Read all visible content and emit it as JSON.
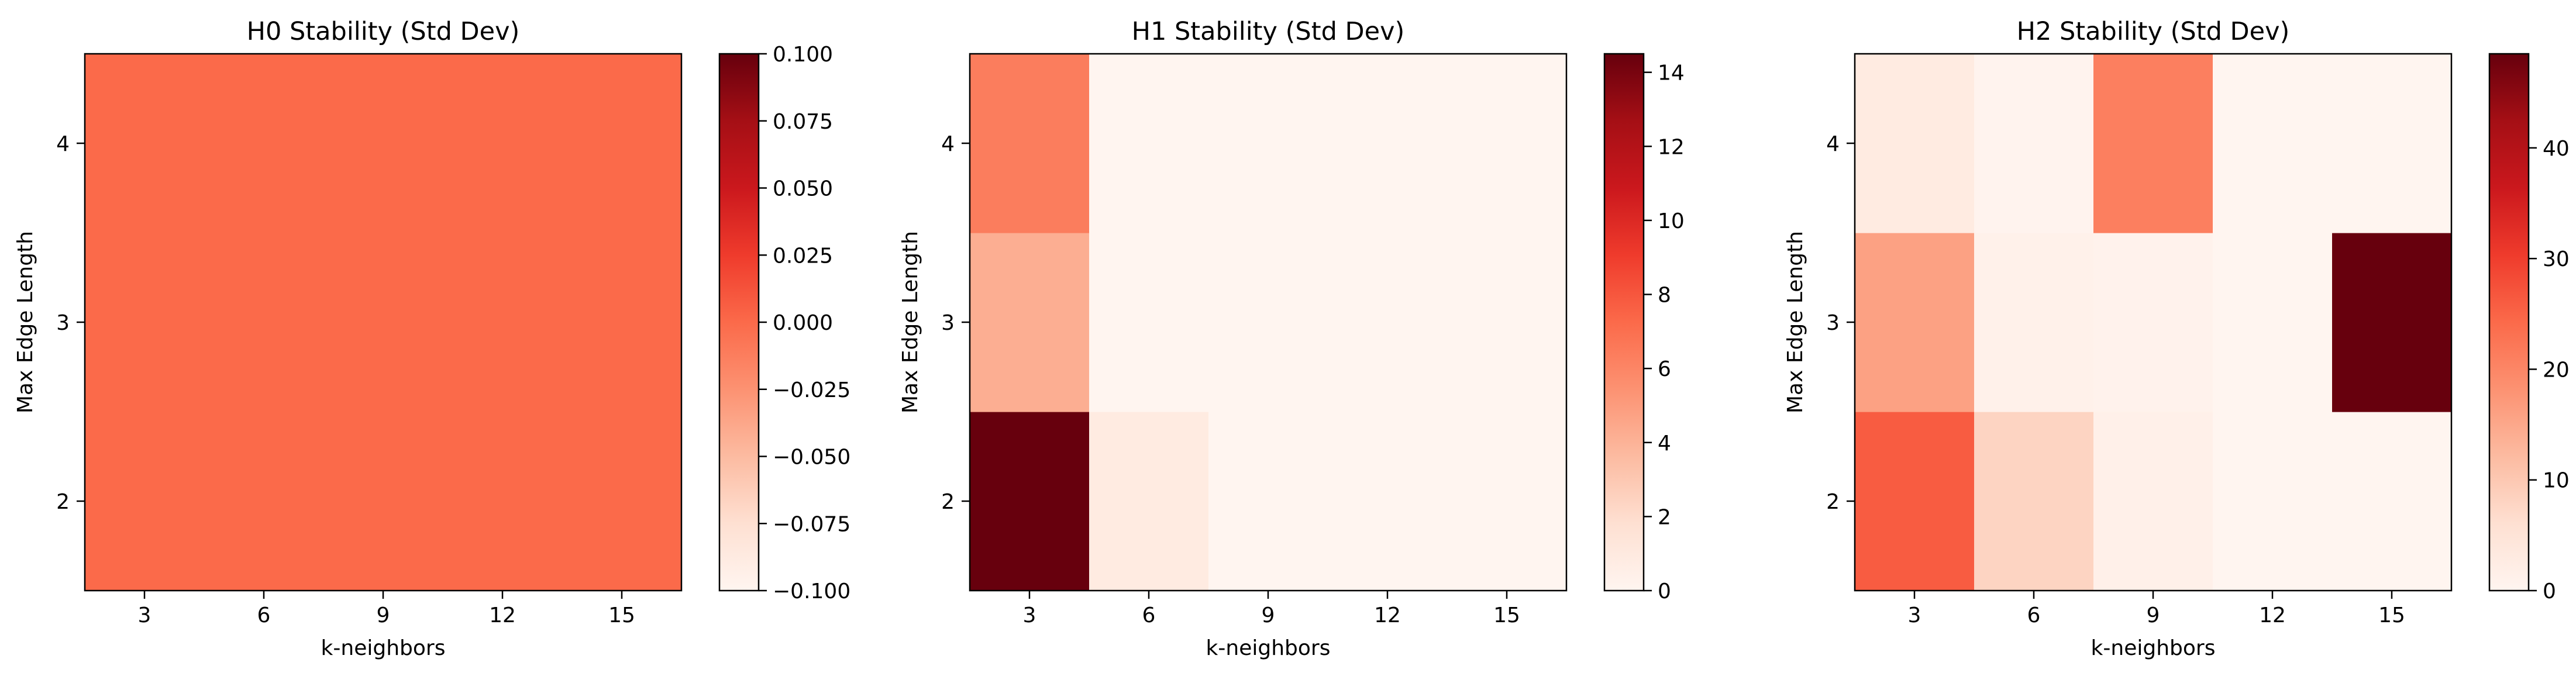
{
  "chart_data": [
    {
      "type": "heatmap",
      "title": "H0 Stability (Std Dev)",
      "xlabel": "k-neighbors",
      "ylabel": "Max Edge Length",
      "x": [
        3,
        6,
        9,
        12,
        15
      ],
      "y": [
        2,
        3,
        4
      ],
      "values": [
        [
          0,
          0,
          0,
          0,
          0
        ],
        [
          0,
          0,
          0,
          0,
          0
        ],
        [
          0,
          0,
          0,
          0,
          0
        ]
      ],
      "colorbar": {
        "min": -0.1,
        "max": 0.1,
        "ticks": [
          -0.1,
          -0.075,
          -0.05,
          -0.025,
          0,
          0.025,
          0.05,
          0.075,
          0.1
        ],
        "tick_labels": [
          "−0.100",
          "−0.075",
          "−0.050",
          "−0.025",
          "0.000",
          "0.025",
          "0.050",
          "0.075",
          "0.100"
        ]
      },
      "colormap": "Reds"
    },
    {
      "type": "heatmap",
      "title": "H1 Stability (Std Dev)",
      "xlabel": "k-neighbors",
      "ylabel": "Max Edge Length",
      "x": [
        3,
        6,
        9,
        12,
        15
      ],
      "y": [
        2,
        3,
        4
      ],
      "values": [
        [
          14.5,
          0.9,
          0,
          0,
          0
        ],
        [
          4.2,
          0,
          0,
          0,
          0
        ],
        [
          6.4,
          0,
          0,
          0,
          0
        ]
      ],
      "colorbar": {
        "min": 0,
        "max": 14.5,
        "ticks": [
          0,
          2,
          4,
          6,
          8,
          10,
          12,
          14
        ],
        "tick_labels": [
          "0",
          "2",
          "4",
          "6",
          "8",
          "10",
          "12",
          "14"
        ]
      },
      "colormap": "Reds"
    },
    {
      "type": "heatmap",
      "title": "H2 Stability (Std Dev)",
      "xlabel": "k-neighbors",
      "ylabel": "Max Edge Length",
      "x": [
        3,
        6,
        9,
        12,
        15
      ],
      "y": [
        2,
        3,
        4
      ],
      "values": [
        [
          26,
          8,
          1.5,
          0,
          0
        ],
        [
          16,
          1.2,
          0.8,
          0,
          48.5
        ],
        [
          3,
          0.5,
          21,
          0,
          0
        ]
      ],
      "colorbar": {
        "min": 0,
        "max": 48.5,
        "ticks": [
          0,
          10,
          20,
          30,
          40
        ],
        "tick_labels": [
          "0",
          "10",
          "20",
          "30",
          "40"
        ]
      },
      "colormap": "Reds"
    }
  ],
  "colors": {
    "reds_scale": [
      "#fff5f0",
      "#fee0d2",
      "#fcbba1",
      "#fc9272",
      "#fb6a4a",
      "#ef3b2c",
      "#cb181d",
      "#a50f15",
      "#67000d"
    ]
  }
}
